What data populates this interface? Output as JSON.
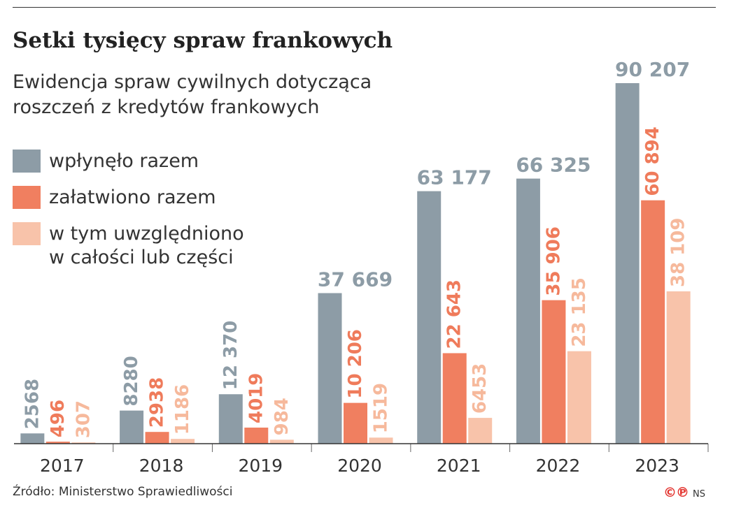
{
  "chart_data": {
    "type": "bar",
    "title": "Setki tysięcy spraw frankowych",
    "subtitle": [
      "Ewidencja spraw cywilnych dotycząca",
      "roszczeń z kredytów frankowych"
    ],
    "categories": [
      "2017",
      "2018",
      "2019",
      "2020",
      "2021",
      "2022",
      "2023"
    ],
    "series": [
      {
        "name": "wpłynęło razem",
        "color": "#8d9ca6",
        "values": [
          2568,
          8280,
          12370,
          37669,
          63177,
          66325,
          90207
        ],
        "labels": [
          "2568",
          "8280",
          "12 370",
          "37 669",
          "63 177",
          "66 325",
          "90 207"
        ]
      },
      {
        "name": "załatwiono razem",
        "color": "#f07f60",
        "values": [
          496,
          2938,
          4019,
          10206,
          22643,
          35906,
          60894
        ],
        "labels": [
          "496",
          "2938",
          "4019",
          "10 206",
          "22 643",
          "35 906",
          "60 894"
        ]
      },
      {
        "name": [
          "w tym uwzględniono",
          "w całości lub części"
        ],
        "color": "#f8c3aa",
        "values": [
          307,
          1186,
          984,
          1519,
          6453,
          23135,
          38109
        ],
        "labels": [
          "307",
          "1186",
          "984",
          "1519",
          "6453",
          "23 135",
          "38 109"
        ]
      }
    ],
    "ylim": [
      0,
      90207
    ],
    "grid": false,
    "legend_position": "top-left"
  },
  "source": "Źródło: Ministerstwo Sprawiedliwości",
  "credit": {
    "logo": "©℗",
    "initials": "NS"
  }
}
